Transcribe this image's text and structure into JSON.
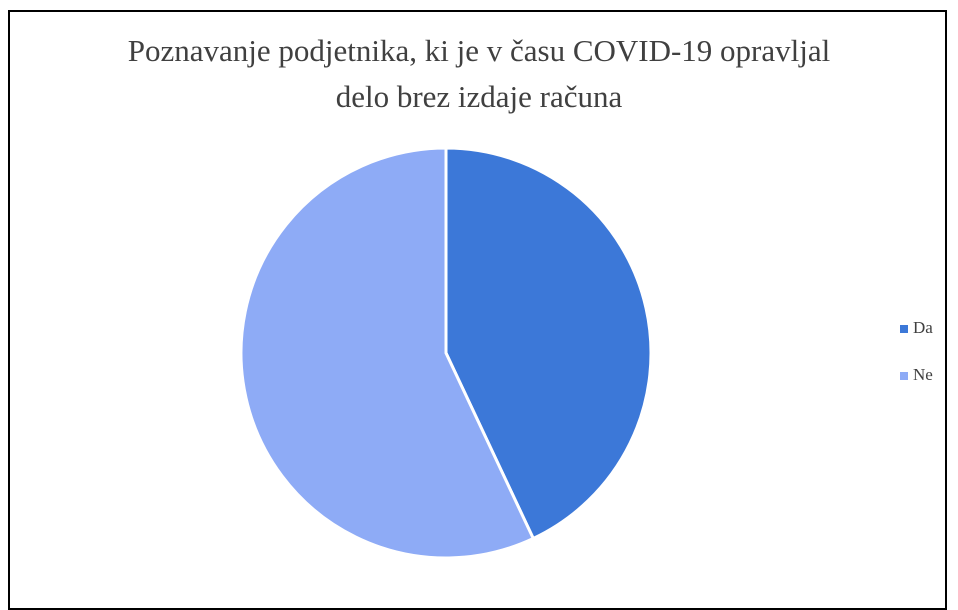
{
  "chart_data": {
    "type": "pie",
    "title": "Poznavanje podjetnika, ki je v času COVID-19 opravljal delo brez izdaje računa",
    "categories": [
      "Da",
      "Ne"
    ],
    "values": [
      43,
      57
    ],
    "colors": [
      "#3c78d8",
      "#8eabf6"
    ],
    "legend": "right"
  }
}
